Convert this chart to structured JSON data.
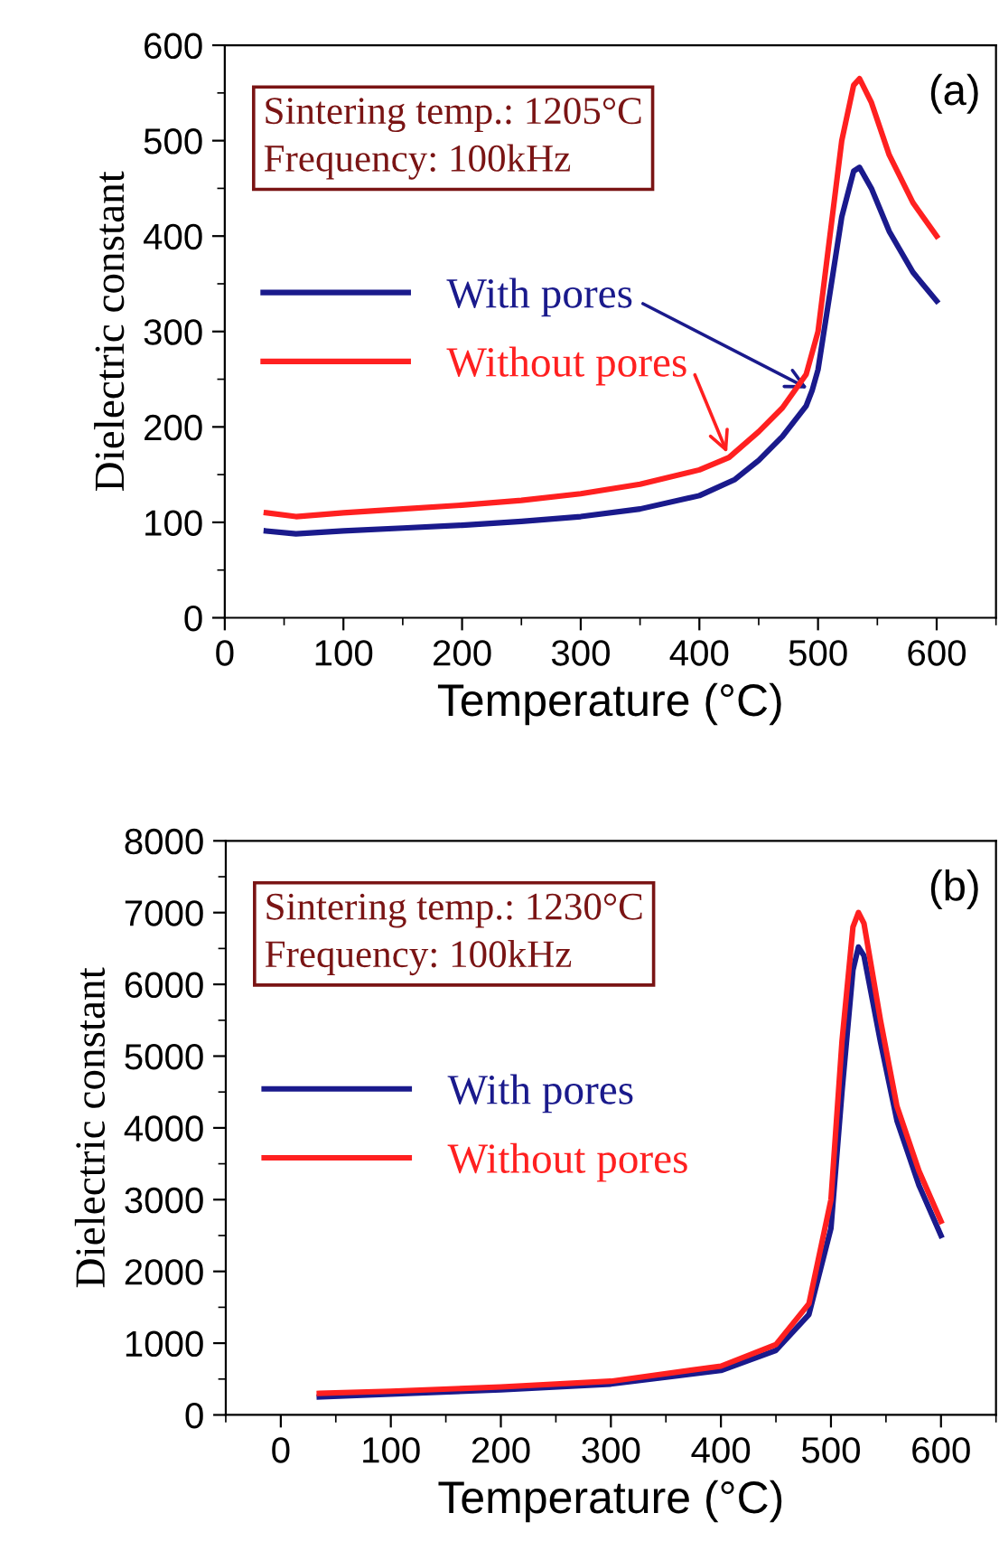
{
  "chart_data": [
    {
      "type": "line",
      "xlabel": "Temperature (°C)",
      "ylabel": "Dielectric constant",
      "xlim": [
        0,
        650
      ],
      "xticks": [
        0,
        100,
        200,
        300,
        400,
        500,
        600
      ],
      "ylim": [
        0,
        600
      ],
      "yticks": [
        0,
        100,
        200,
        300,
        400,
        500,
        600
      ],
      "grid": false,
      "legend": "left",
      "line_style": "solid",
      "marker": "none",
      "annotations": [
        "Sintering temp.: 1205°C",
        "Frequency: 100kHz",
        "(a)"
      ],
      "series": [
        {
          "name": "With pores",
          "color": "#1a1a8c",
          "x": [
            35,
            60,
            100,
            150,
            200,
            250,
            300,
            350,
            400,
            430,
            450,
            470,
            490,
            495,
            500,
            510,
            520,
            530,
            535,
            545,
            560,
            580,
            600
          ],
          "values": [
            91,
            88,
            91,
            94,
            97,
            101,
            106,
            114,
            128,
            145,
            165,
            190,
            222,
            238,
            260,
            340,
            420,
            468,
            472,
            450,
            405,
            362,
            332
          ]
        },
        {
          "name": "Without pores",
          "color": "#ff2020",
          "x": [
            35,
            60,
            100,
            150,
            200,
            250,
            300,
            350,
            400,
            425,
            450,
            470,
            490,
            500,
            510,
            520,
            530,
            535,
            545,
            560,
            580,
            600
          ],
          "values": [
            110,
            106,
            110,
            114,
            118,
            123,
            130,
            140,
            155,
            168,
            195,
            220,
            255,
            300,
            400,
            500,
            558,
            565,
            540,
            485,
            435,
            400
          ]
        }
      ]
    },
    {
      "type": "line",
      "xlabel": "Temperature (°C)",
      "ylabel": "Dielectric constant",
      "xlim": [
        -50,
        650
      ],
      "xticks": [
        0,
        100,
        200,
        300,
        400,
        500,
        600
      ],
      "ylim": [
        0,
        8000
      ],
      "yticks": [
        0,
        1000,
        2000,
        3000,
        4000,
        5000,
        6000,
        7000,
        8000
      ],
      "grid": false,
      "legend": "left",
      "line_style": "solid",
      "marker": "none",
      "annotations": [
        "Sintering temp.: 1230°C",
        "Frequency: 100kHz",
        "(b)"
      ],
      "series": [
        {
          "name": "With pores",
          "color": "#1a1a8c",
          "x": [
            35,
            100,
            200,
            300,
            400,
            450,
            480,
            500,
            510,
            520,
            525,
            530,
            545,
            560,
            580,
            600
          ],
          "values": [
            250,
            290,
            350,
            430,
            620,
            900,
            1400,
            2600,
            4500,
            6200,
            6520,
            6400,
            5200,
            4100,
            3200,
            2500
          ]
        },
        {
          "name": "Without pores",
          "color": "#ff2020",
          "x": [
            35,
            100,
            200,
            300,
            400,
            450,
            480,
            500,
            510,
            520,
            525,
            530,
            545,
            560,
            580,
            600
          ],
          "values": [
            300,
            330,
            390,
            470,
            680,
            980,
            1550,
            3000,
            5200,
            6800,
            7000,
            6850,
            5500,
            4300,
            3400,
            2700
          ]
        }
      ]
    }
  ]
}
